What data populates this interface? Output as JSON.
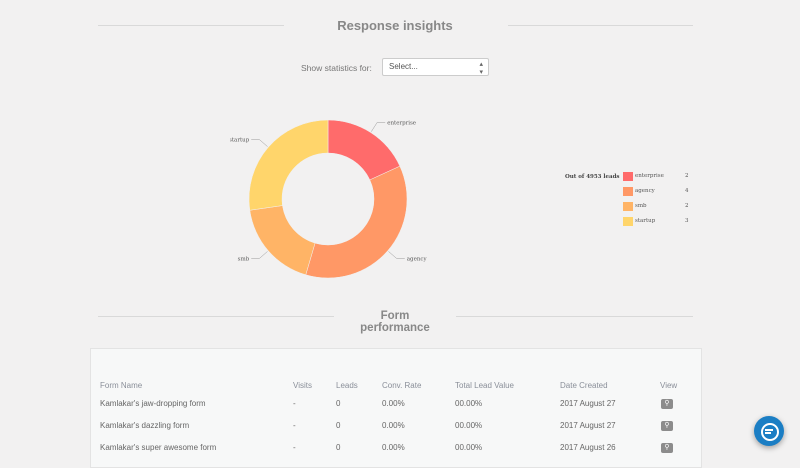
{
  "insights": {
    "title": "Response insights",
    "stats_label": "Show statistics for:",
    "select_value": "Select..."
  },
  "chart_data": {
    "type": "pie",
    "donut": true,
    "categories": [
      "enterprise",
      "agency",
      "smb",
      "startup"
    ],
    "values": [
      2,
      4,
      2,
      3
    ],
    "colors": [
      "#ff6b6b",
      "#ff9866",
      "#ffb466",
      "#ffd56b"
    ],
    "legend_header": "Out of 4953 leads",
    "legend_position": "right"
  },
  "performance": {
    "title": "Form performance",
    "columns": [
      "Form Name",
      "Visits",
      "Leads",
      "Conv. Rate",
      "Total Lead Value",
      "Date Created",
      "View"
    ],
    "rows": [
      {
        "name": "Kamlakar's jaw-dropping form",
        "visits": "-",
        "leads": "0",
        "conv": "0.00%",
        "value": "00.00%",
        "date": "2017 August 27"
      },
      {
        "name": "Kamlakar's dazzling form",
        "visits": "-",
        "leads": "0",
        "conv": "0.00%",
        "value": "00.00%",
        "date": "2017 August 27"
      },
      {
        "name": "Kamlakar's super awesome form",
        "visits": "-",
        "leads": "0",
        "conv": "0.00%",
        "value": "00.00%",
        "date": "2017 August 26"
      }
    ],
    "view_icon": "magnifier-icon"
  },
  "chat": {
    "icon": "chat-icon",
    "color": "#1b7ec4"
  }
}
